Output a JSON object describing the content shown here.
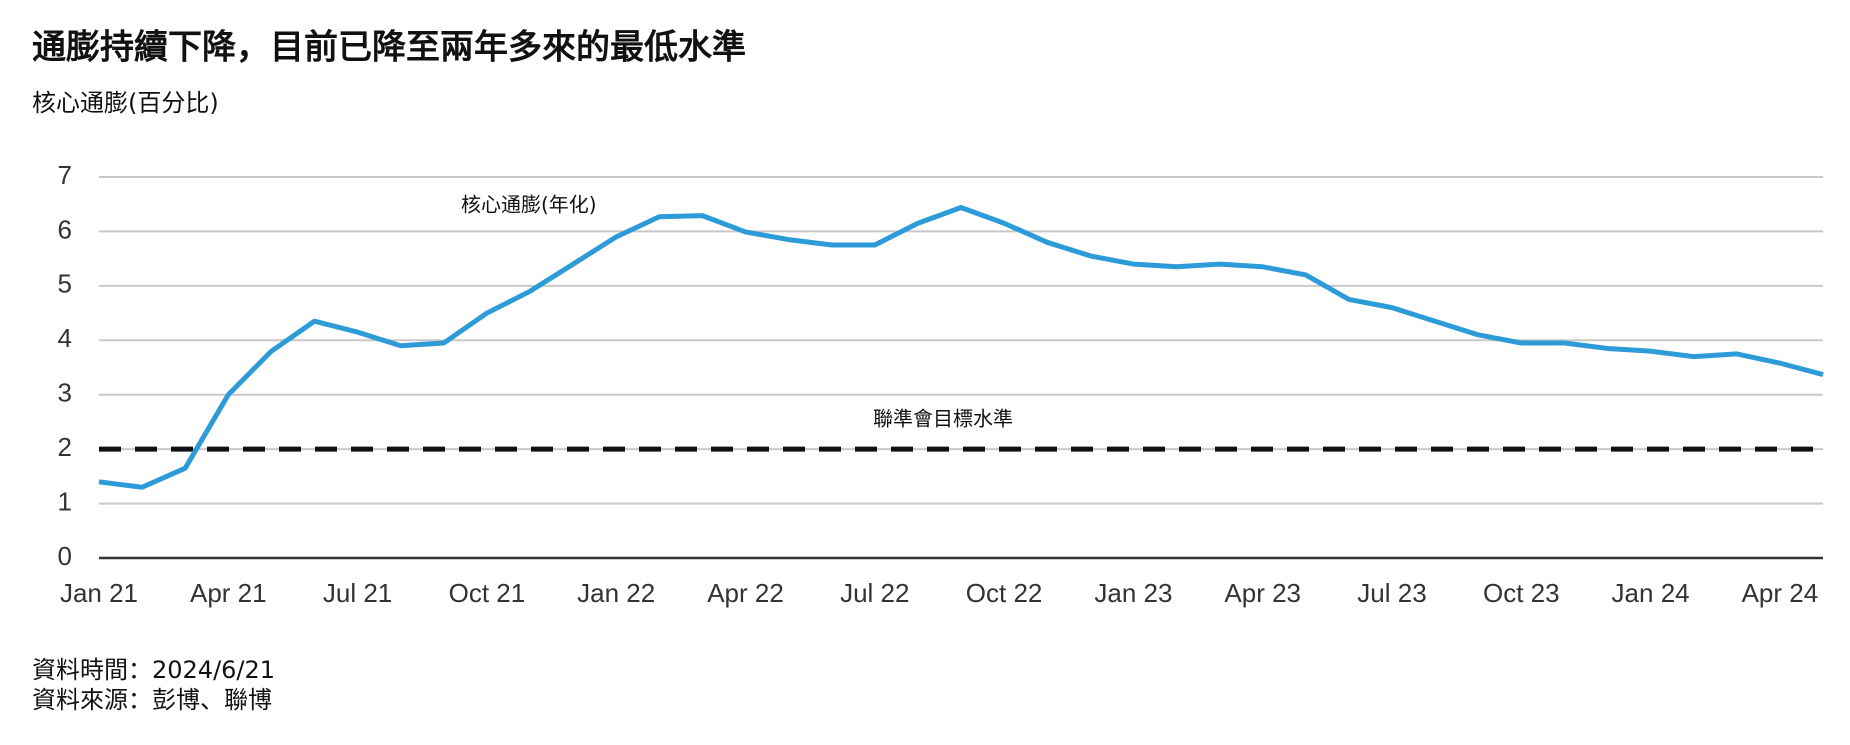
{
  "chart_data": {
    "type": "line",
    "title": "通膨持續下降，目前已降至兩年多來的最低水準",
    "subtitle": "核心通膨(百分比)",
    "categories": [
      "Jan 21",
      null,
      null,
      "Apr 21",
      null,
      null,
      "Jul 21",
      null,
      null,
      "Oct 21",
      null,
      null,
      "Jan 22",
      null,
      null,
      "Apr 22",
      null,
      null,
      "Jul 22",
      null,
      null,
      "Oct 22",
      null,
      null,
      "Jan 23",
      null,
      null,
      "Apr 23",
      null,
      null,
      "Jul 23",
      null,
      null,
      "Oct 23",
      null,
      null,
      "Jan 24",
      null,
      null,
      "Apr 24",
      null
    ],
    "series": [
      {
        "name": "核心通膨(年化)",
        "color": "#2e9bd9",
        "values": [
          1.4,
          1.3,
          1.65,
          3.0,
          3.8,
          4.35,
          4.15,
          3.9,
          3.95,
          4.5,
          4.9,
          5.4,
          5.9,
          6.27,
          6.29,
          5.99,
          5.85,
          5.75,
          5.75,
          6.15,
          6.44,
          6.15,
          5.8,
          5.55,
          5.4,
          5.35,
          5.4,
          5.35,
          5.2,
          4.75,
          4.6,
          4.35,
          4.1,
          3.95,
          3.95,
          3.85,
          3.8,
          3.7,
          3.75,
          3.58,
          3.37
        ]
      }
    ],
    "reference_line": {
      "value": 2,
      "label": "聯準會目標水準",
      "color": "#111111"
    },
    "ylim": [
      0,
      7
    ],
    "yticks": [
      0,
      1,
      2,
      3,
      4,
      5,
      6,
      7
    ],
    "grid": true,
    "footnotes": [
      "資料時間：2024/6/21",
      "資料來源：彭博、聯博"
    ]
  }
}
